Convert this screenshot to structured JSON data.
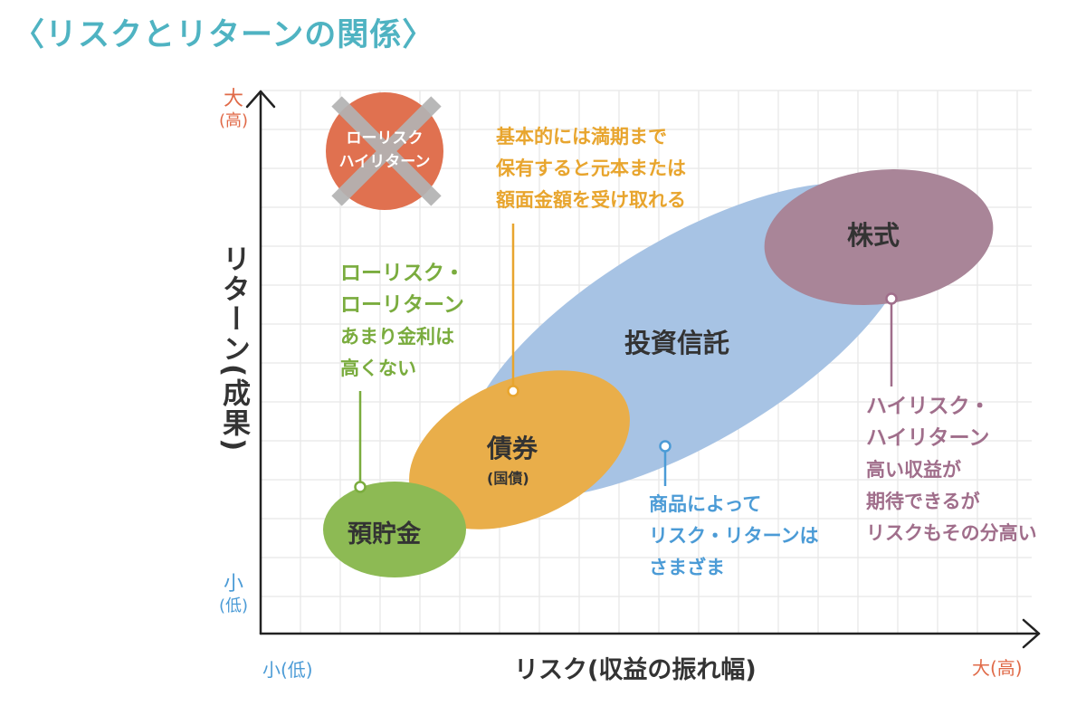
{
  "title": "〈リスクとリターンの関係〉",
  "axes": {
    "y_title": "リターン(成果)",
    "x_title": "リスク(収益の振れ幅)",
    "y_top": [
      "大",
      "(高)"
    ],
    "y_bottom": [
      "小",
      "(低)"
    ],
    "x_left": "小(低)",
    "x_right": "大(高)"
  },
  "no_badge": {
    "lines": [
      "ローリスク",
      "ハイリターン"
    ]
  },
  "products": {
    "deposit": "預貯金",
    "bond": "債券",
    "bond_sub": "(国債)",
    "trust": "投資信託",
    "stock": "株式"
  },
  "notes": {
    "bond": [
      "基本的には満期まで",
      "保有すると元本または",
      "額面金額を受け取れる"
    ],
    "deposit": [
      "ローリスク・",
      "ローリターン",
      "あまり金利は",
      "高くない"
    ],
    "trust": [
      "商品によって",
      "リスク・リターンは",
      "さまざま"
    ],
    "stock": [
      "ハイリスク・",
      "ハイリターン",
      "高い収益が",
      "期待できるが",
      "リスクもその分高い"
    ]
  },
  "colors": {
    "title": "#4fb3c2",
    "deposit": "#8dba54",
    "bond": "#e9ae4a",
    "trust": "#a7c3e4",
    "stock": "#a98598",
    "badge": "#e07150",
    "axis_high": "#e06a48",
    "axis_low": "#4b9bd6"
  }
}
